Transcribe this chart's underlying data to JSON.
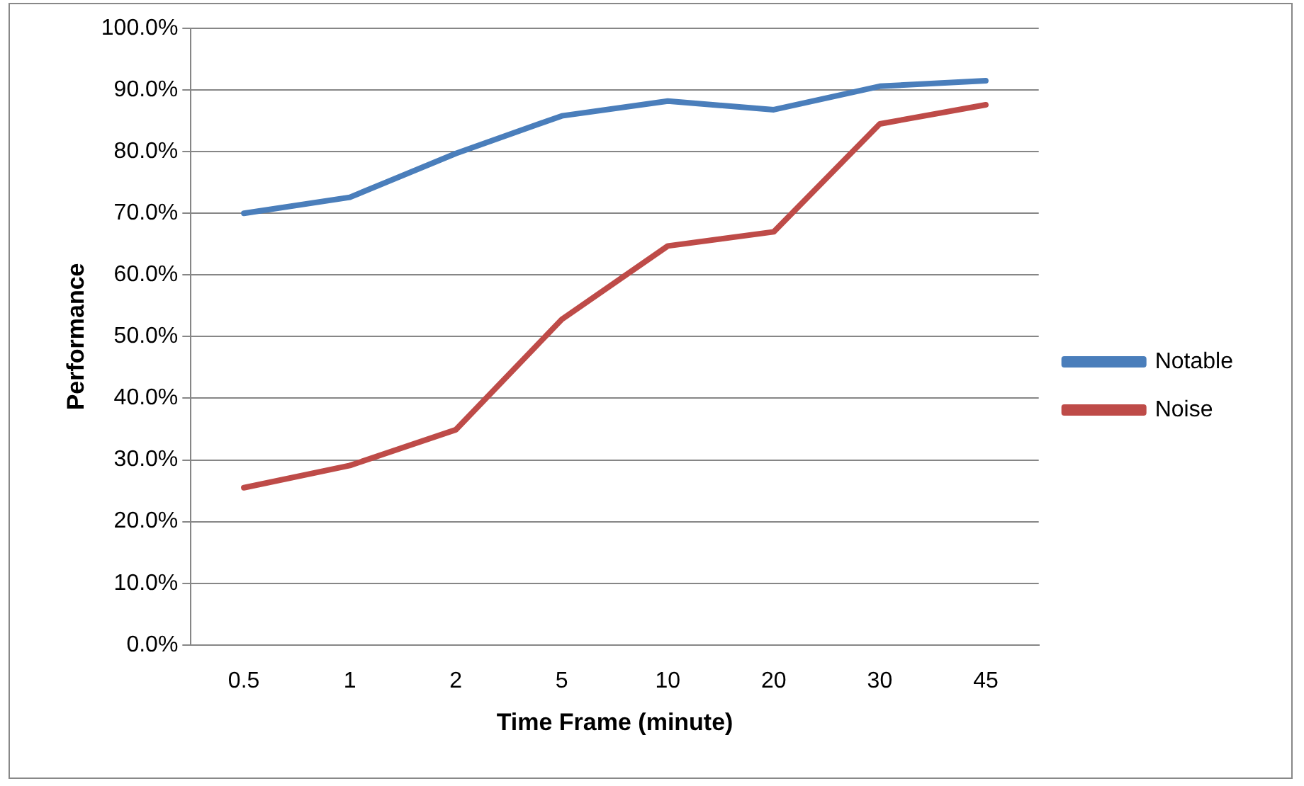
{
  "chart_data": {
    "type": "line",
    "xlabel": "Time Frame (minute)",
    "ylabel": "Performance",
    "categories": [
      "0.5",
      "1",
      "2",
      "5",
      "10",
      "20",
      "30",
      "45"
    ],
    "series": [
      {
        "name": "Notable",
        "color": "#4a7ebb",
        "values": [
          70.0,
          72.6,
          79.7,
          85.8,
          88.2,
          86.8,
          90.6,
          91.5
        ]
      },
      {
        "name": "Noise",
        "color": "#be4b48",
        "values": [
          25.5,
          29.1,
          34.9,
          52.8,
          64.7,
          67.0,
          84.5,
          87.6
        ]
      }
    ],
    "ylim": [
      0,
      100
    ],
    "yticks": [
      {
        "value": 0,
        "label": "0.0%"
      },
      {
        "value": 10,
        "label": "10.0%"
      },
      {
        "value": 20,
        "label": "20.0%"
      },
      {
        "value": 30,
        "label": "30.0%"
      },
      {
        "value": 40,
        "label": "40.0%"
      },
      {
        "value": 50,
        "label": "50.0%"
      },
      {
        "value": 60,
        "label": "60.0%"
      },
      {
        "value": 70,
        "label": "70.0%"
      },
      {
        "value": 80,
        "label": "80.0%"
      },
      {
        "value": 90,
        "label": "90.0%"
      },
      {
        "value": 100,
        "label": "100.0%"
      }
    ],
    "grid": "y",
    "legend": "right",
    "marker": "none",
    "line_style": "solid"
  }
}
